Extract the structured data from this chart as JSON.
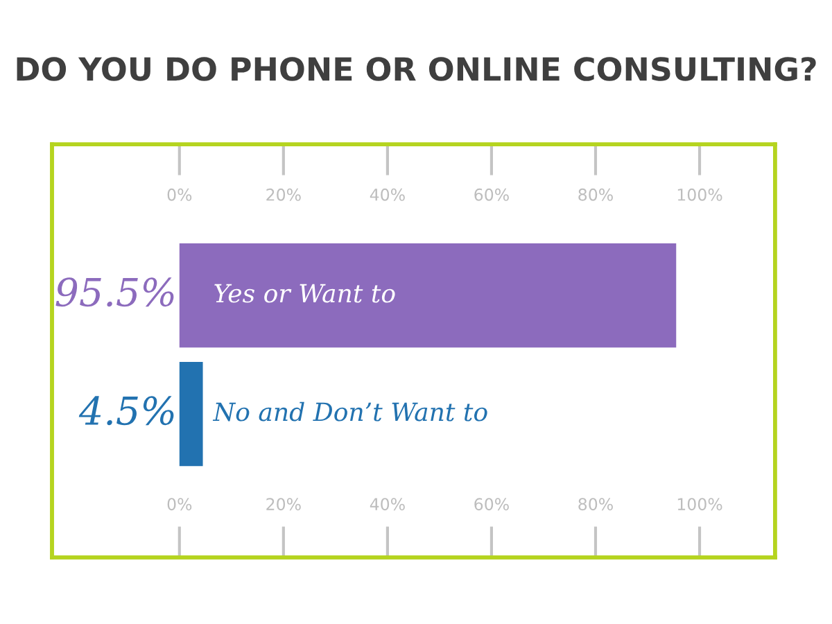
{
  "chart_data": {
    "type": "bar",
    "orientation": "horizontal",
    "title": "DO YOU DO PHONE OR ONLINE CONSULTING?",
    "categories": [
      "Yes or Want to",
      "No and Don’t Want to"
    ],
    "values": [
      95.5,
      4.5
    ],
    "colors": [
      "#8c6bbd",
      "#2272b0"
    ],
    "value_labels": [
      "95.5%",
      "4.5%"
    ],
    "xlim": [
      -24.5,
      114.5
    ],
    "xticks": [
      {
        "value": 0,
        "label": "0%"
      },
      {
        "value": 20,
        "label": "20%"
      },
      {
        "value": 40,
        "label": "40%"
      },
      {
        "value": 60,
        "label": "60%"
      },
      {
        "value": 80,
        "label": "80%"
      },
      {
        "value": 100,
        "label": "100%"
      }
    ],
    "x2lim": [
      -24.5,
      114.5
    ],
    "x2ticks": [
      {
        "value": 0,
        "label": "0%"
      },
      {
        "value": 20,
        "label": "20%"
      },
      {
        "value": 40,
        "label": "40%"
      },
      {
        "value": 60,
        "label": "60%"
      },
      {
        "value": 80,
        "label": "80%"
      },
      {
        "value": 100,
        "label": "100%"
      }
    ],
    "grid": false
  }
}
